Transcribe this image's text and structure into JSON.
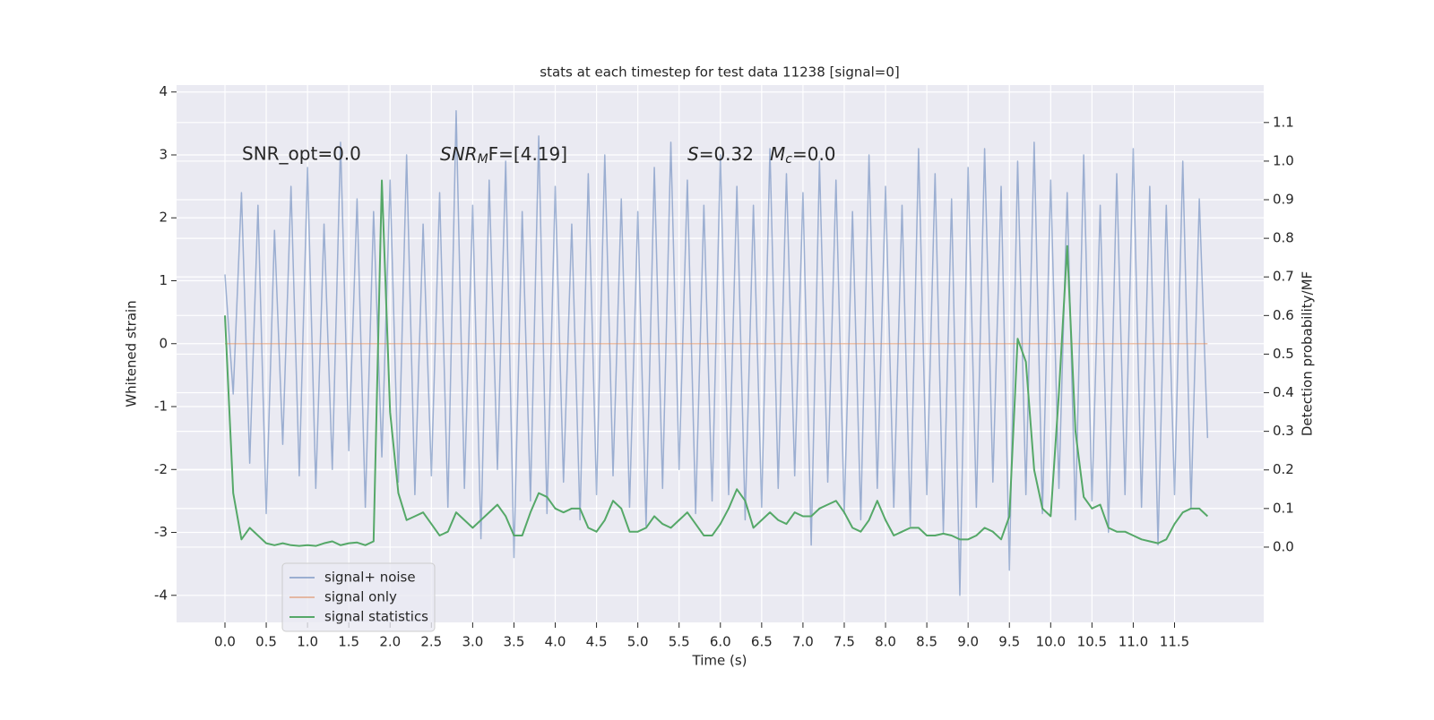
{
  "chart_data": {
    "type": "line",
    "title": "stats at each timestep for test data 11238 [signal=0]",
    "xlabel": "Time (s)",
    "ylabel": "Whitened strain",
    "y2label": "Detection probability/MF",
    "annotations": [
      {
        "text": "SNR_opt=0.0"
      },
      {
        "main": "SNR",
        "sub": "M",
        "after": "F=[4.19]"
      },
      {
        "main": "S",
        "after": "=0.32"
      },
      {
        "main": "M",
        "sub": "c",
        "after": "=0.0"
      }
    ],
    "x": [
      0.0,
      0.1,
      0.2,
      0.3,
      0.4,
      0.5,
      0.6,
      0.7,
      0.8,
      0.9,
      1.0,
      1.1,
      1.2,
      1.3,
      1.4,
      1.5,
      1.6,
      1.7,
      1.8,
      1.9,
      2.0,
      2.1,
      2.2,
      2.3,
      2.4,
      2.5,
      2.6,
      2.7,
      2.8,
      2.9,
      3.0,
      3.1,
      3.2,
      3.3,
      3.4,
      3.5,
      3.6,
      3.7,
      3.8,
      3.9,
      4.0,
      4.1,
      4.2,
      4.3,
      4.4,
      4.5,
      4.6,
      4.7,
      4.8,
      4.9,
      5.0,
      5.1,
      5.2,
      5.3,
      5.4,
      5.5,
      5.6,
      5.7,
      5.8,
      5.9,
      6.0,
      6.1,
      6.2,
      6.3,
      6.4,
      6.5,
      6.6,
      6.7,
      6.8,
      6.9,
      7.0,
      7.1,
      7.2,
      7.3,
      7.4,
      7.5,
      7.6,
      7.7,
      7.8,
      7.9,
      8.0,
      8.1,
      8.2,
      8.3,
      8.4,
      8.5,
      8.6,
      8.7,
      8.8,
      8.9,
      9.0,
      9.1,
      9.2,
      9.3,
      9.4,
      9.5,
      9.6,
      9.7,
      9.8,
      9.9,
      10.0,
      10.1,
      10.2,
      10.3,
      10.4,
      10.5,
      10.6,
      10.7,
      10.8,
      10.9,
      11.0,
      11.1,
      11.2,
      11.3,
      11.4,
      11.5,
      11.6,
      11.7,
      11.8,
      11.9
    ],
    "series": [
      {
        "name": "signal+ noise",
        "color": "#4c72b0",
        "values": [
          1.1,
          -0.8,
          2.4,
          -1.9,
          2.2,
          -2.7,
          1.8,
          -1.6,
          2.5,
          -2.1,
          2.8,
          -2.3,
          1.9,
          -2.0,
          3.2,
          -1.7,
          2.3,
          -2.6,
          2.1,
          -1.8,
          2.6,
          -2.2,
          3.0,
          -2.4,
          1.9,
          -2.1,
          2.4,
          -2.6,
          3.7,
          -2.3,
          2.2,
          -3.1,
          2.6,
          -2.0,
          2.9,
          -3.4,
          2.1,
          -2.5,
          3.3,
          -2.7,
          2.5,
          -2.2,
          1.9,
          -2.8,
          2.7,
          -2.4,
          3.0,
          -2.1,
          2.3,
          -2.6,
          2.1,
          -2.9,
          2.8,
          -2.3,
          3.2,
          -2.0,
          2.6,
          -2.7,
          2.2,
          -2.5,
          3.0,
          -2.4,
          2.5,
          -2.8,
          2.2,
          -2.6,
          3.1,
          -2.3,
          2.7,
          -2.1,
          2.4,
          -3.2,
          2.9,
          -2.2,
          2.6,
          -2.7,
          2.1,
          -2.8,
          3.0,
          -2.3,
          2.5,
          -2.6,
          2.2,
          -2.9,
          3.1,
          -2.4,
          2.7,
          -3.0,
          2.3,
          -4.0,
          2.8,
          -2.6,
          3.1,
          -2.2,
          2.5,
          -3.6,
          2.9,
          -2.4,
          3.2,
          -2.7,
          2.6,
          -2.3,
          2.4,
          -2.8,
          3.0,
          -2.5,
          2.2,
          -3.0,
          2.7,
          -2.4,
          3.1,
          -2.6,
          2.5,
          -3.2,
          2.2,
          -2.4,
          2.9,
          -2.6,
          2.3,
          -1.5
        ]
      },
      {
        "name": "signal only",
        "color": "#dd8452",
        "values": [
          0,
          0,
          0,
          0,
          0,
          0,
          0,
          0,
          0,
          0,
          0,
          0,
          0,
          0,
          0,
          0,
          0,
          0,
          0,
          0,
          0,
          0,
          0,
          0,
          0,
          0,
          0,
          0,
          0,
          0,
          0,
          0,
          0,
          0,
          0,
          0,
          0,
          0,
          0,
          0,
          0,
          0,
          0,
          0,
          0,
          0,
          0,
          0,
          0,
          0,
          0,
          0,
          0,
          0,
          0,
          0,
          0,
          0,
          0,
          0,
          0,
          0,
          0,
          0,
          0,
          0,
          0,
          0,
          0,
          0,
          0,
          0,
          0,
          0,
          0,
          0,
          0,
          0,
          0,
          0,
          0,
          0,
          0,
          0,
          0,
          0,
          0,
          0,
          0,
          0,
          0,
          0,
          0,
          0,
          0,
          0,
          0,
          0,
          0,
          0,
          0,
          0,
          0,
          0,
          0,
          0,
          0,
          0,
          0,
          0,
          0,
          0,
          0,
          0,
          0,
          0,
          0,
          0,
          0,
          0
        ]
      },
      {
        "name": "signal statistics",
        "color": "#55a868",
        "axis": "y2",
        "values": [
          0.6,
          0.14,
          0.02,
          0.05,
          0.03,
          0.01,
          0.005,
          0.01,
          0.005,
          0.003,
          0.005,
          0.003,
          0.01,
          0.015,
          0.005,
          0.01,
          0.012,
          0.005,
          0.015,
          0.95,
          0.35,
          0.14,
          0.07,
          0.08,
          0.09,
          0.06,
          0.03,
          0.04,
          0.09,
          0.07,
          0.05,
          0.07,
          0.09,
          0.11,
          0.08,
          0.03,
          0.03,
          0.09,
          0.14,
          0.13,
          0.1,
          0.09,
          0.1,
          0.1,
          0.05,
          0.04,
          0.07,
          0.12,
          0.1,
          0.04,
          0.04,
          0.05,
          0.08,
          0.06,
          0.05,
          0.07,
          0.09,
          0.06,
          0.03,
          0.03,
          0.06,
          0.1,
          0.15,
          0.12,
          0.05,
          0.07,
          0.09,
          0.07,
          0.06,
          0.09,
          0.08,
          0.08,
          0.1,
          0.11,
          0.12,
          0.09,
          0.05,
          0.04,
          0.07,
          0.12,
          0.07,
          0.03,
          0.04,
          0.05,
          0.05,
          0.03,
          0.03,
          0.035,
          0.03,
          0.02,
          0.02,
          0.03,
          0.05,
          0.04,
          0.02,
          0.08,
          0.54,
          0.48,
          0.2,
          0.1,
          0.08,
          0.4,
          0.78,
          0.3,
          0.13,
          0.1,
          0.11,
          0.05,
          0.04,
          0.04,
          0.03,
          0.02,
          0.015,
          0.01,
          0.02,
          0.06,
          0.09,
          0.1,
          0.1,
          0.08
        ]
      }
    ],
    "xlim": [
      -0.586,
      12.58
    ],
    "ylim": [
      -4.43,
      4.11
    ],
    "y2lim": [
      -0.195,
      1.197
    ],
    "xticks": [
      {
        "value": 0,
        "label": "0.0"
      },
      0.5,
      {
        "value": 1,
        "label": "1.0"
      },
      1.5,
      {
        "value": 2,
        "label": "2.0"
      },
      2.5,
      {
        "value": 3,
        "label": "3.0"
      },
      3.5,
      {
        "value": 4,
        "label": "4.0"
      },
      4.5,
      {
        "value": 5,
        "label": "5.0"
      },
      5.5,
      {
        "value": 6,
        "label": "6.0"
      },
      6.5,
      {
        "value": 7,
        "label": "7.0"
      },
      7.5,
      {
        "value": 8,
        "label": "8.0"
      },
      8.5,
      {
        "value": 9,
        "label": "9.0"
      },
      9.5,
      {
        "value": 10,
        "label": "10.0"
      },
      10.5,
      {
        "value": 11,
        "label": "11.0"
      },
      11.5
    ],
    "yticks": [
      -4,
      -3,
      -2,
      -1,
      0,
      1,
      2,
      3,
      4
    ],
    "y2ticks": [
      {
        "value": 0,
        "label": "0.0"
      },
      0.1,
      0.2,
      0.3,
      0.4,
      0.5,
      0.6,
      0.7,
      0.8,
      0.9,
      {
        "value": 1,
        "label": "1.0"
      },
      1.1
    ],
    "grid": true,
    "legend": "lower left"
  }
}
